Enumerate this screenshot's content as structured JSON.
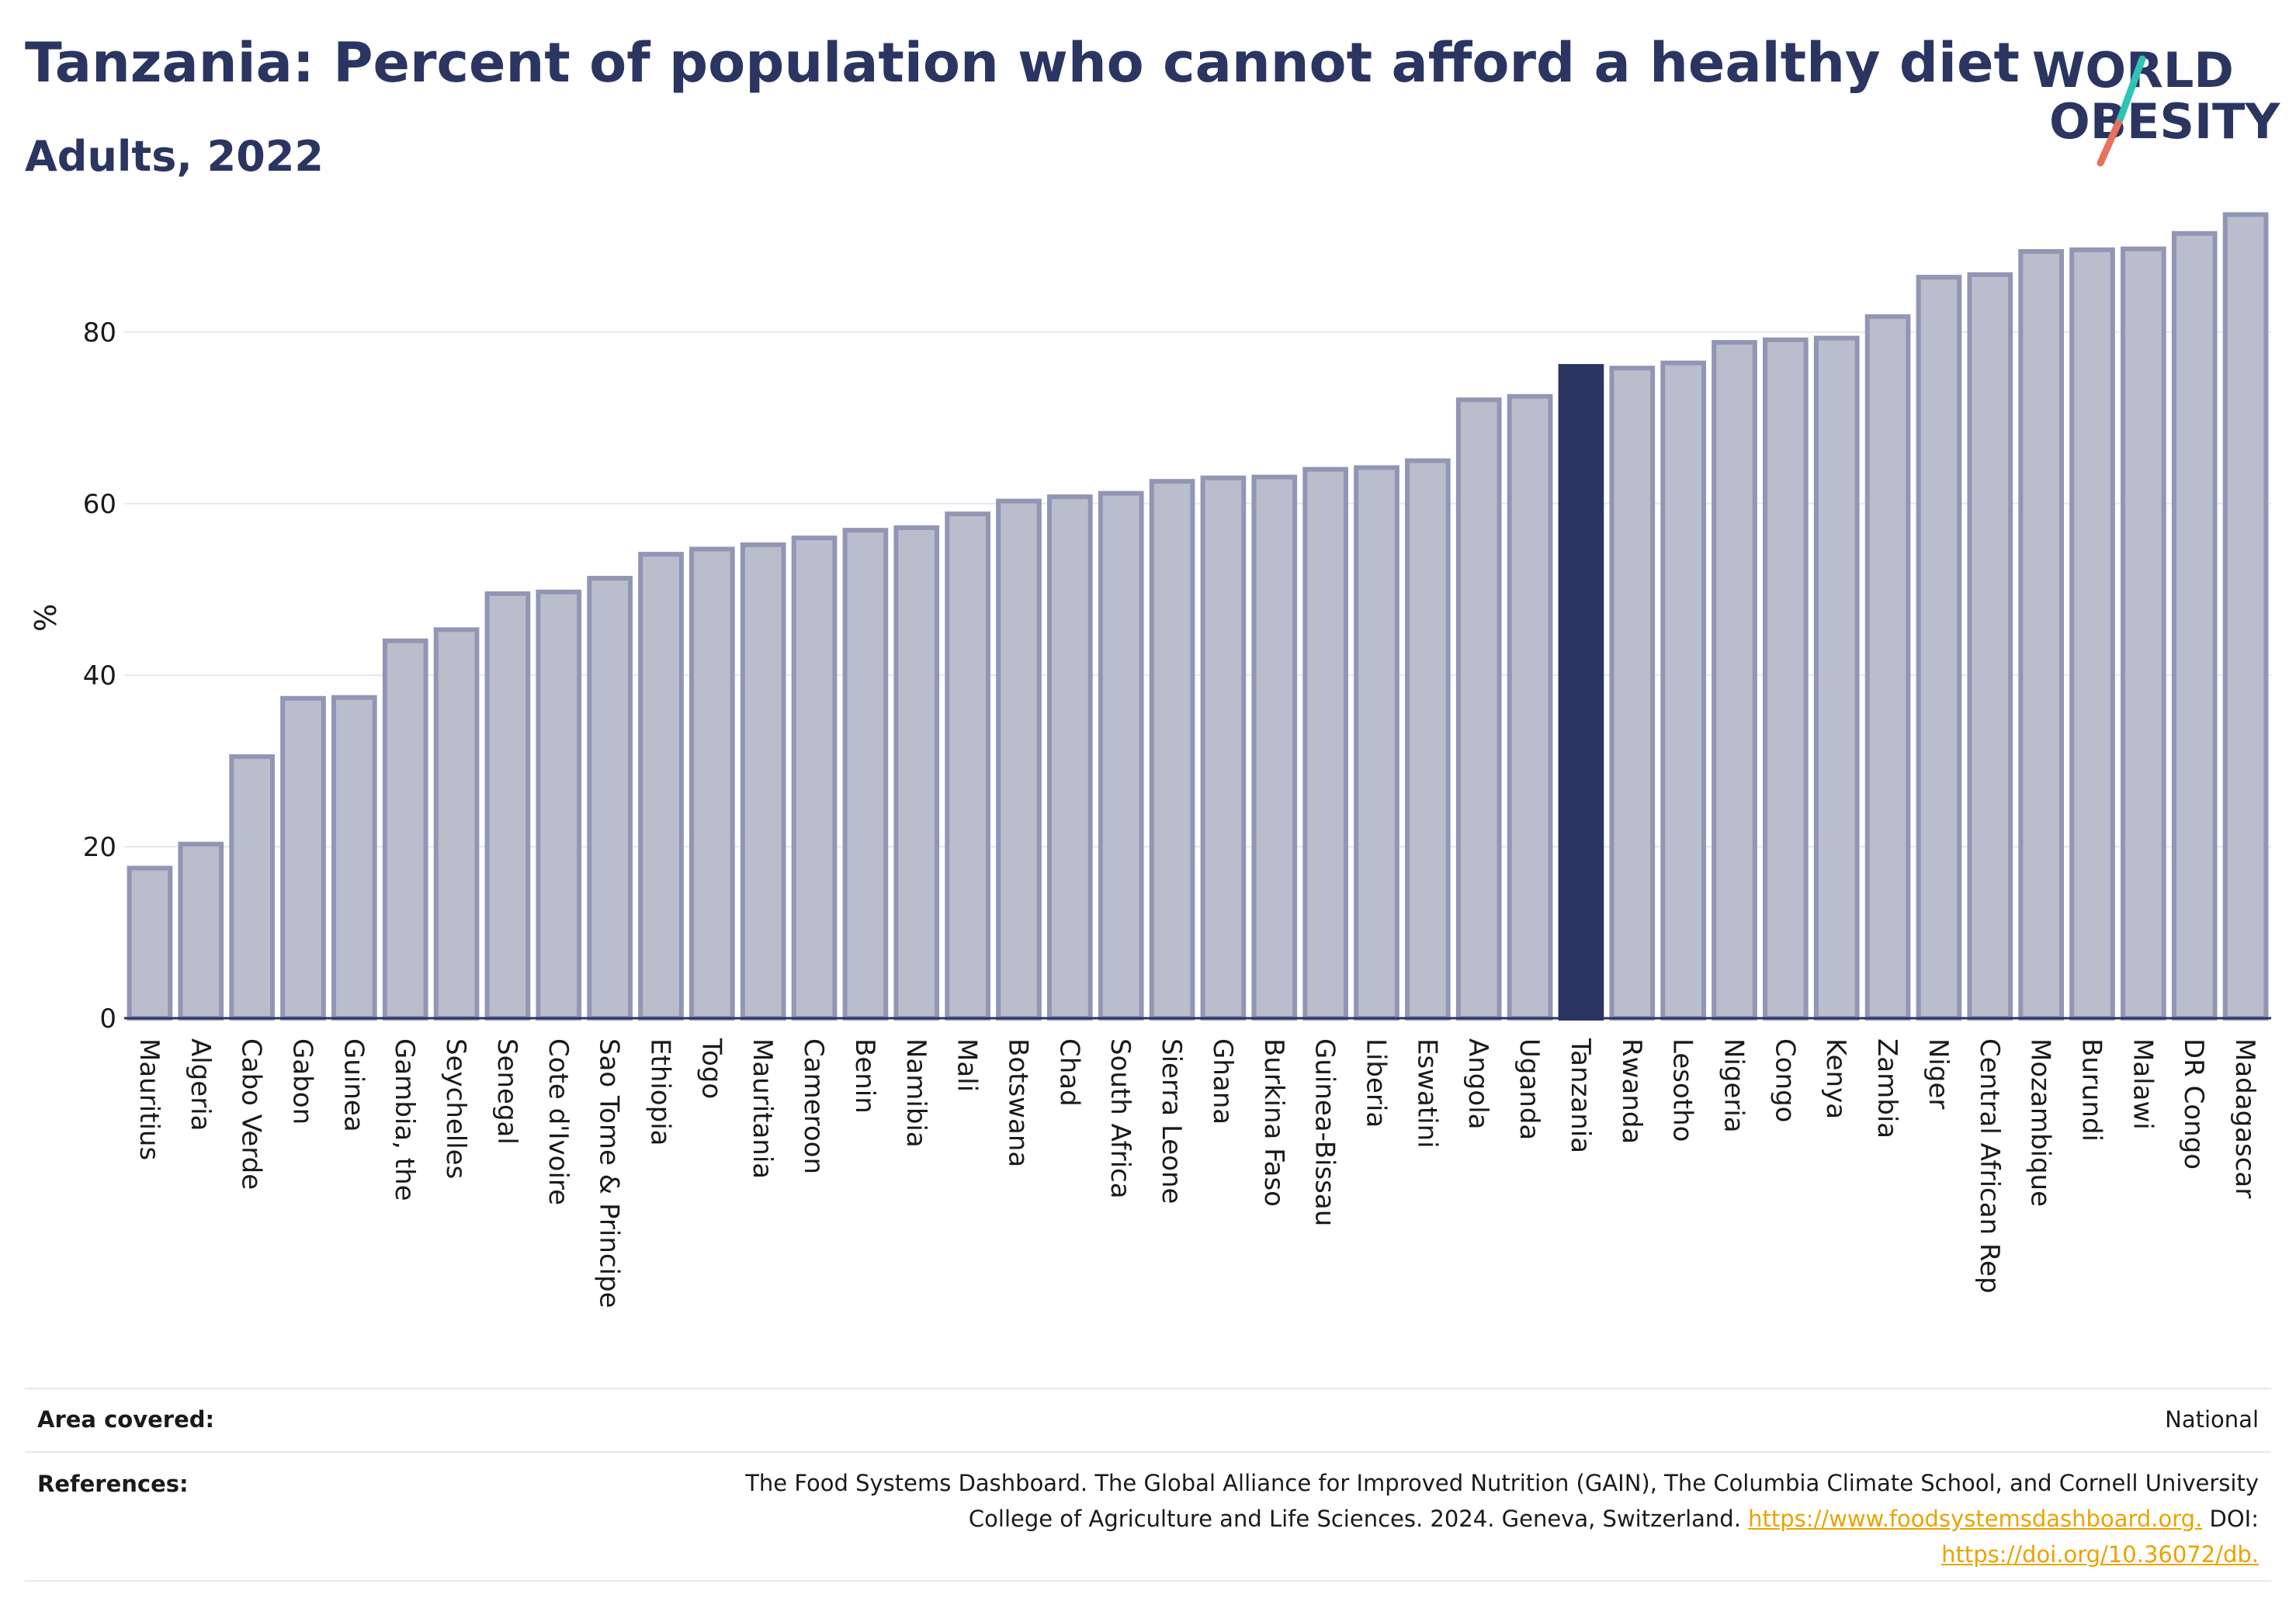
{
  "header": {
    "title": "Tanzania: Percent of population who cannot afford a healthy diet",
    "subtitle": "Adults, 2022"
  },
  "logo": {
    "line1": "WORLD",
    "line2": "OBESITY",
    "colors": {
      "text": "#2b3561",
      "teal": "#2ec4b6",
      "coral": "#e8705f"
    }
  },
  "colors": {
    "bar_fill": "#b9bdcc",
    "bar_stroke": "#9196b4",
    "highlight": "#2b3561",
    "grid": "#e6e8f0",
    "axis": "#2b3561"
  },
  "chart_data": {
    "type": "bar",
    "title": "Tanzania: Percent of population who cannot afford a healthy diet",
    "subtitle": "Adults, 2022",
    "xlabel": "",
    "ylabel": "%",
    "ylim": [
      0,
      97
    ],
    "yticks": [
      0,
      20,
      40,
      60,
      80
    ],
    "grid": true,
    "highlight": "Tanzania",
    "categories": [
      "Mauritius",
      "Algeria",
      "Cabo Verde",
      "Gabon",
      "Guinea",
      "Gambia, the",
      "Seychelles",
      "Senegal",
      "Cote d'Ivoire",
      "Sao Tome & Principe",
      "Ethiopia",
      "Togo",
      "Mauritania",
      "Cameroon",
      "Benin",
      "Namibia",
      "Mali",
      "Botswana",
      "Chad",
      "South Africa",
      "Sierra Leone",
      "Ghana",
      "Burkina Faso",
      "Guinea-Bissau",
      "Liberia",
      "Eswatini",
      "Angola",
      "Uganda",
      "Tanzania",
      "Rwanda",
      "Lesotho",
      "Nigeria",
      "Congo",
      "Kenya",
      "Zambia",
      "Niger",
      "Central African Rep",
      "Mozambique",
      "Burundi",
      "Malawi",
      "DR Congo",
      "Madagascar"
    ],
    "values": [
      17.5,
      20.3,
      30.5,
      37.3,
      37.4,
      44,
      45.3,
      49.5,
      49.7,
      51.3,
      54.1,
      54.7,
      55.2,
      56,
      56.9,
      57.2,
      58.8,
      60.3,
      60.8,
      61.2,
      62.6,
      63,
      63.1,
      64,
      64.2,
      65,
      72.1,
      72.5,
      76,
      75.8,
      76.4,
      78.8,
      79.1,
      79.3,
      81.8,
      86.4,
      86.7,
      89.4,
      89.6,
      89.7,
      91.5,
      93.7
    ]
  },
  "footer": {
    "area_label": "Area covered:",
    "area_value": "National",
    "refs_label": "References:",
    "refs_line1": "The Food Systems Dashboard. The Global Alliance for Improved Nutrition (GAIN), The Columbia Climate School, and Cornell University",
    "refs_line2_text": "College of Agriculture and Life Sciences. 2024. Geneva, Switzerland.",
    "refs_link1": "https://www.foodsystemsdashboard.org.",
    "refs_doi": "DOI:",
    "refs_link2": "https://doi.org/10.36072/db."
  }
}
